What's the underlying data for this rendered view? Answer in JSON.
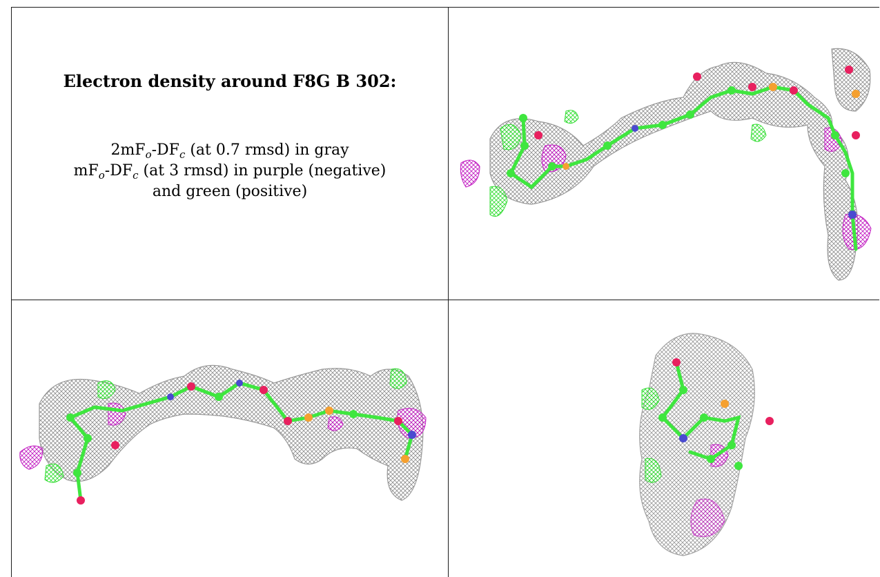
{
  "header": {
    "title": "Electron density around F8G B 302:"
  },
  "legend": {
    "line1": {
      "prefix": "2mF",
      "sub_o": "o",
      "mid": "-DF",
      "sub_c": "c",
      "suffix": " (at 0.7 rmsd) in gray"
    },
    "line2": {
      "prefix": "mF",
      "sub_o": "o",
      "mid": "-DF",
      "sub_c": "c",
      "suffix": " (at 3 rmsd) in purple (negative)"
    },
    "line3": "and green (positive)"
  },
  "panels": [
    {
      "name": "view-top-right"
    },
    {
      "name": "view-bottom-left"
    },
    {
      "name": "view-bottom-right"
    }
  ],
  "colors": {
    "mesh_2fofc": "#9a9a9a",
    "mesh_negative": "#c21ec2",
    "mesh_positive": "#33dd33",
    "carbon": "#3fe63f",
    "oxygen": "#e8205f",
    "nitrogen": "#4a4ad0",
    "phosphorus": "#f5a030"
  }
}
